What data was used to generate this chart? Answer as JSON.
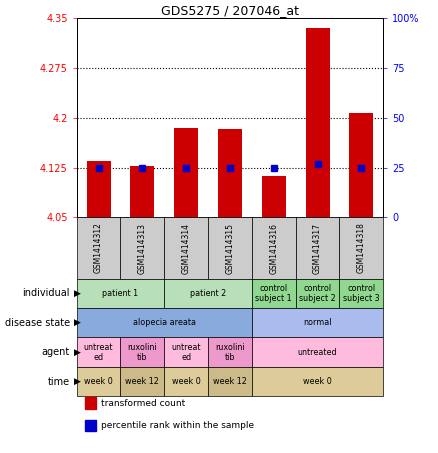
{
  "title": "GDS5275 / 207046_at",
  "samples": [
    "GSM1414312",
    "GSM1414313",
    "GSM1414314",
    "GSM1414315",
    "GSM1414316",
    "GSM1414317",
    "GSM1414318"
  ],
  "bar_values": [
    4.135,
    4.127,
    4.185,
    4.183,
    4.113,
    4.335,
    4.207
  ],
  "percentile_values": [
    25,
    25,
    25,
    25,
    25,
    27,
    25
  ],
  "ylim_left": [
    4.05,
    4.35
  ],
  "ylim_right": [
    0,
    100
  ],
  "yticks_left": [
    4.05,
    4.125,
    4.2,
    4.275,
    4.35
  ],
  "ytick_labels_left": [
    "4.05",
    "4.125",
    "4.2",
    "4.275",
    "4.35"
  ],
  "yticks_right": [
    0,
    25,
    50,
    75,
    100
  ],
  "ytick_labels_right": [
    "0",
    "25",
    "50",
    "75",
    "100%"
  ],
  "hlines": [
    4.125,
    4.2,
    4.275
  ],
  "bar_color": "#cc0000",
  "dot_color": "#0000cc",
  "bar_width": 0.55,
  "rows": [
    {
      "label": "individual",
      "cells": [
        {
          "text": "patient 1",
          "span": 2,
          "color": "#b8e0b8"
        },
        {
          "text": "patient 2",
          "span": 2,
          "color": "#b8e0b8"
        },
        {
          "text": "control\nsubject 1",
          "span": 1,
          "color": "#90d890"
        },
        {
          "text": "control\nsubject 2",
          "span": 1,
          "color": "#90d890"
        },
        {
          "text": "control\nsubject 3",
          "span": 1,
          "color": "#90d890"
        }
      ]
    },
    {
      "label": "disease state",
      "cells": [
        {
          "text": "alopecia areata",
          "span": 4,
          "color": "#88aadd"
        },
        {
          "text": "normal",
          "span": 3,
          "color": "#aabbee"
        }
      ]
    },
    {
      "label": "agent",
      "cells": [
        {
          "text": "untreat\ned",
          "span": 1,
          "color": "#ffbbdd"
        },
        {
          "text": "ruxolini\ntib",
          "span": 1,
          "color": "#ee99cc"
        },
        {
          "text": "untreat\ned",
          "span": 1,
          "color": "#ffbbdd"
        },
        {
          "text": "ruxolini\ntib",
          "span": 1,
          "color": "#ee99cc"
        },
        {
          "text": "untreated",
          "span": 3,
          "color": "#ffbbdd"
        }
      ]
    },
    {
      "label": "time",
      "cells": [
        {
          "text": "week 0",
          "span": 1,
          "color": "#ddcc99"
        },
        {
          "text": "week 12",
          "span": 1,
          "color": "#ccbb88"
        },
        {
          "text": "week 0",
          "span": 1,
          "color": "#ddcc99"
        },
        {
          "text": "week 12",
          "span": 1,
          "color": "#ccbb88"
        },
        {
          "text": "week 0",
          "span": 3,
          "color": "#ddcc99"
        }
      ]
    }
  ],
  "legend_items": [
    {
      "color": "#cc0000",
      "label": "transformed count"
    },
    {
      "color": "#0000cc",
      "label": "percentile rank within the sample"
    }
  ],
  "sample_box_color": "#cccccc",
  "background_color": "#ffffff"
}
